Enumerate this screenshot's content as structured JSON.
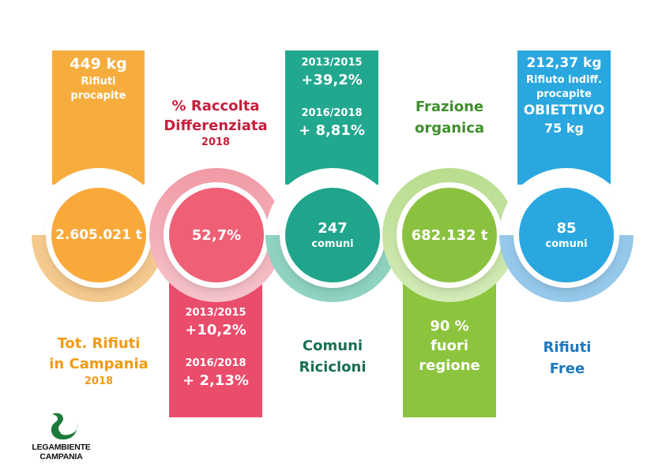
{
  "col1": {
    "bar_value": "449 kg",
    "bar_line1": "Rifiuti",
    "bar_line2": "procapite",
    "circle_value": "2.605.021 t",
    "label_line1": "Tot. Rifiuti",
    "label_line2": "in Campania",
    "label_year": "2018",
    "color": "#f7ad3d"
  },
  "col2": {
    "title_line1": "% Raccolta",
    "title_line2": "Differenziata",
    "title_year": "2018",
    "circle_value": "52,7%",
    "bar_period1": "2013/2015",
    "bar_value1": "+10,2%",
    "bar_period2": "2016/2018",
    "bar_value2": "+ 2,13%",
    "color": "#ea4c6c"
  },
  "col3": {
    "bar_period1": "2013/2015",
    "bar_value1": "+39,2%",
    "bar_period2": "2016/2018",
    "bar_value2": "+ 8,81%",
    "circle_value": "247",
    "circle_sub": "comuni",
    "label_line1": "Comuni",
    "label_line2": "Ricicloni",
    "color": "#22a88f"
  },
  "col4": {
    "title_line1": "Frazione",
    "title_line2": "organica",
    "circle_value": "682.132 t",
    "bar_line1": "90 %",
    "bar_line2": "fuori",
    "bar_line3": "regione",
    "color": "#8cc43d"
  },
  "col5": {
    "bar_value": "212,37 kg",
    "bar_line1": "Rifiuto indiff.",
    "bar_line2": "procapite",
    "bar_line3": "OBIETTIVO",
    "bar_line4": "75 kg",
    "circle_value": "85",
    "circle_sub": "comuni",
    "label_line1": "Rifiuti",
    "label_line2": "Free",
    "color": "#2aa7df"
  },
  "logo": {
    "line1": "LEGAMBIENTE",
    "line2": "CAMPANIA"
  }
}
